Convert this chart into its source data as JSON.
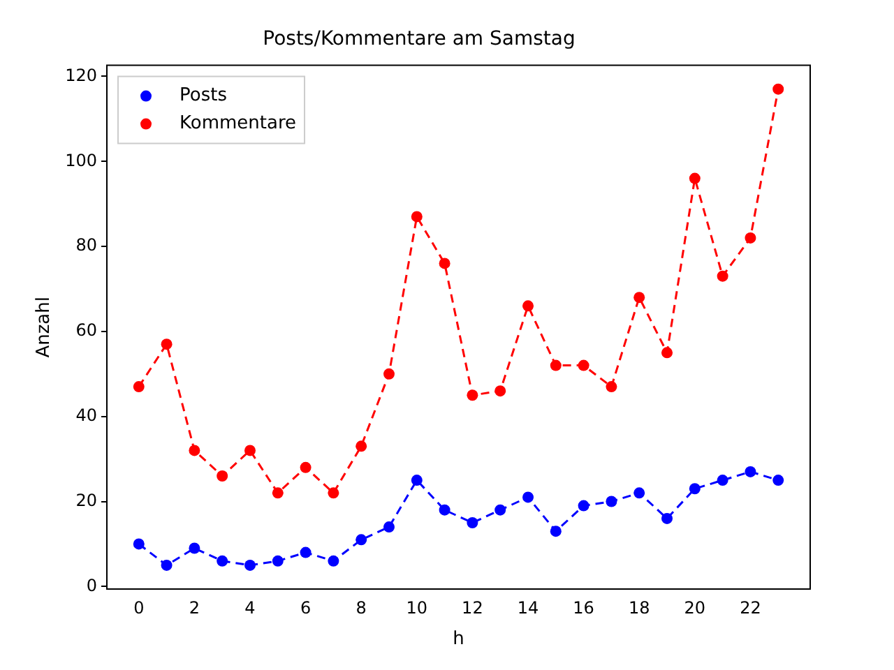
{
  "chart_data": {
    "type": "line",
    "title": "Posts/Kommentare am Samstag",
    "xlabel": "h",
    "ylabel": "Anzahl",
    "x": [
      0,
      1,
      2,
      3,
      4,
      5,
      6,
      7,
      8,
      9,
      10,
      11,
      12,
      13,
      14,
      15,
      16,
      17,
      18,
      19,
      20,
      21,
      22,
      23
    ],
    "series": [
      {
        "name": "Posts",
        "color": "#0000ff",
        "values": [
          10,
          5,
          9,
          6,
          5,
          6,
          8,
          6,
          11,
          14,
          25,
          18,
          15,
          18,
          21,
          13,
          19,
          20,
          22,
          16,
          23,
          25,
          27,
          25
        ]
      },
      {
        "name": "Kommentare",
        "color": "#ff0000",
        "values": [
          47,
          57,
          32,
          26,
          32,
          22,
          28,
          22,
          33,
          50,
          87,
          76,
          45,
          46,
          66,
          52,
          52,
          47,
          68,
          55,
          96,
          73,
          82,
          117
        ]
      }
    ],
    "xlim": [
      -1.15,
      24.15
    ],
    "xticks": [
      0,
      2,
      4,
      6,
      8,
      10,
      12,
      14,
      16,
      18,
      20,
      22
    ],
    "ylim": [
      -0.6,
      122.6
    ],
    "yticks": [
      0,
      20,
      40,
      60,
      80,
      100,
      120
    ],
    "grid": false,
    "legend": "top left",
    "marker": "circle",
    "line_style": "dashed"
  }
}
